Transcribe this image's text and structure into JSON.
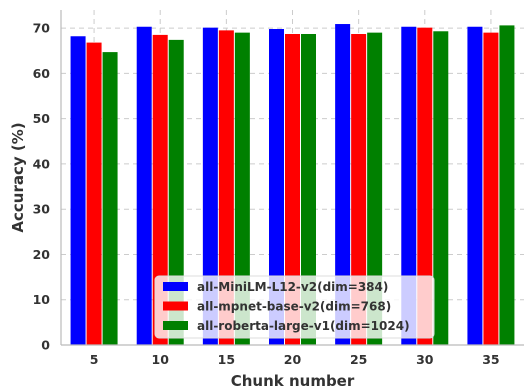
{
  "chart_data": {
    "type": "bar",
    "title": "",
    "xlabel": "Chunk number",
    "ylabel": "Accuracy (%)",
    "categories": [
      "5",
      "10",
      "15",
      "20",
      "25",
      "30",
      "35"
    ],
    "ylim": [
      0,
      74
    ],
    "yticks": [
      0,
      10,
      20,
      30,
      40,
      50,
      60,
      70
    ],
    "grid": true,
    "legend_position": "bottom-center",
    "series": [
      {
        "name": "all-MiniLM-L12-v2(dim=384)",
        "color": "#0000ff",
        "values": [
          68.2,
          70.3,
          70.1,
          69.8,
          70.9,
          70.3,
          70.3
        ]
      },
      {
        "name": "all-mpnet-base-v2(dim=768)",
        "color": "#ff0000",
        "values": [
          66.8,
          68.5,
          69.5,
          68.7,
          68.7,
          70.1,
          69.0
        ]
      },
      {
        "name": "all-roberta-large-v1(dim=1024)",
        "color": "#008000",
        "values": [
          64.7,
          67.4,
          69.0,
          68.7,
          69.0,
          69.3,
          70.6
        ]
      }
    ]
  }
}
